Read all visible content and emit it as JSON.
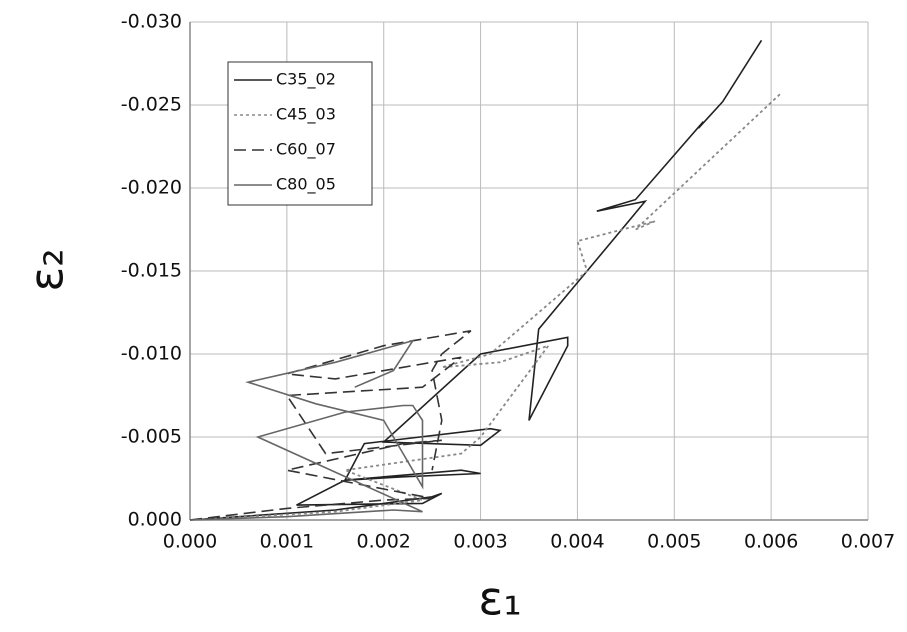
{
  "chart_data": {
    "type": "line",
    "xlabel": "ε₁",
    "ylabel": "ε₂",
    "xlim": [
      0,
      0.007
    ],
    "ylim": [
      0,
      -0.03
    ],
    "xticks": [
      {
        "value": 0,
        "label": "0.000"
      },
      {
        "value": 0.001,
        "label": "0.001"
      },
      {
        "value": 0.002,
        "label": "0.002"
      },
      {
        "value": 0.003,
        "label": "0.003"
      },
      {
        "value": 0.004,
        "label": "0.004"
      },
      {
        "value": 0.005,
        "label": "0.005"
      },
      {
        "value": 0.006,
        "label": "0.006"
      },
      {
        "value": 0.007,
        "label": "0.007"
      }
    ],
    "yticks": [
      {
        "value": 0,
        "label": "0.000"
      },
      {
        "value": -0.005,
        "label": "-0.005"
      },
      {
        "value": -0.01,
        "label": "-0.010"
      },
      {
        "value": -0.015,
        "label": "-0.015"
      },
      {
        "value": -0.02,
        "label": "-0.020"
      },
      {
        "value": -0.025,
        "label": "-0.025"
      },
      {
        "value": -0.03,
        "label": "-0.030"
      }
    ],
    "grid": true,
    "legend": "upper-left",
    "series": [
      {
        "name": "C35_02",
        "color": "#222222",
        "dash": "solid",
        "x": [
          0,
          0.0015,
          0.0025,
          0.0026,
          0.0024,
          0.0011,
          0.0016,
          0.0028,
          0.003,
          0.0022,
          0.0016,
          0.0018,
          0.0031,
          0.0032,
          0.003,
          0.002,
          0.003,
          0.0039,
          0.0039,
          0.0035,
          0.0036,
          0.0041,
          0.0047,
          0.0042,
          0.0046,
          0.0053,
          0.00525,
          0.0055,
          0.0059
        ],
        "values": [
          0,
          -0.0006,
          -0.0014,
          -0.0016,
          -0.001,
          -0.0009,
          -0.0024,
          -0.003,
          -0.0028,
          -0.0026,
          -0.0024,
          -0.0046,
          -0.0055,
          -0.0054,
          -0.0045,
          -0.0047,
          -0.01,
          -0.011,
          -0.0105,
          -0.006,
          -0.0115,
          -0.015,
          -0.0192,
          -0.0186,
          -0.0193,
          -0.024,
          -0.0236,
          -0.0252,
          -0.0289
        ]
      },
      {
        "name": "C45_03",
        "color": "#888888",
        "dash": "dotted",
        "x": [
          0,
          0.0015,
          0.0024,
          0.0016,
          0.0028,
          0.003,
          0.0037,
          0.0032,
          0.0026,
          0.0031,
          0.0041,
          0.004,
          0.0048,
          0.0046,
          0.0061
        ],
        "values": [
          0,
          -0.0005,
          -0.0012,
          -0.003,
          -0.004,
          -0.005,
          -0.0105,
          -0.0095,
          -0.0092,
          -0.01,
          -0.015,
          -0.0168,
          -0.018,
          -0.0175,
          -0.0257
        ]
      },
      {
        "name": "C60_07",
        "color": "#333333",
        "dash": "dashed",
        "x": [
          0,
          0.001,
          0.002,
          0.0025,
          0.001,
          0.0022,
          0.0026,
          0.0014,
          0.001,
          0.0024,
          0.0028,
          0.0022,
          0.0015,
          0.001,
          0.002,
          0.0029,
          0.0026,
          0.0025,
          0.0026,
          0.0025
        ],
        "values": [
          0,
          -0.0007,
          -0.0012,
          -0.0013,
          -0.003,
          -0.0046,
          -0.0048,
          -0.004,
          -0.0075,
          -0.008,
          -0.0098,
          -0.0092,
          -0.0085,
          -0.0088,
          -0.0105,
          -0.0114,
          -0.01,
          -0.009,
          -0.006,
          -0.003
        ]
      },
      {
        "name": "C80_05",
        "color": "#666666",
        "dash": "solid",
        "x": [
          0,
          0.001,
          0.0021,
          0.0024,
          0.0007,
          0.0016,
          0.0022,
          0.0023,
          0.0024,
          0.0024,
          0.002,
          0.0013,
          0.0006,
          0.0015,
          0.0023,
          0.0021,
          0.0017
        ],
        "values": [
          0,
          -0.0002,
          -0.0006,
          -0.0005,
          -0.005,
          -0.0065,
          -0.0069,
          -0.0069,
          -0.006,
          -0.002,
          -0.006,
          -0.007,
          -0.0083,
          -0.0095,
          -0.0108,
          -0.009,
          -0.008
        ]
      }
    ]
  }
}
